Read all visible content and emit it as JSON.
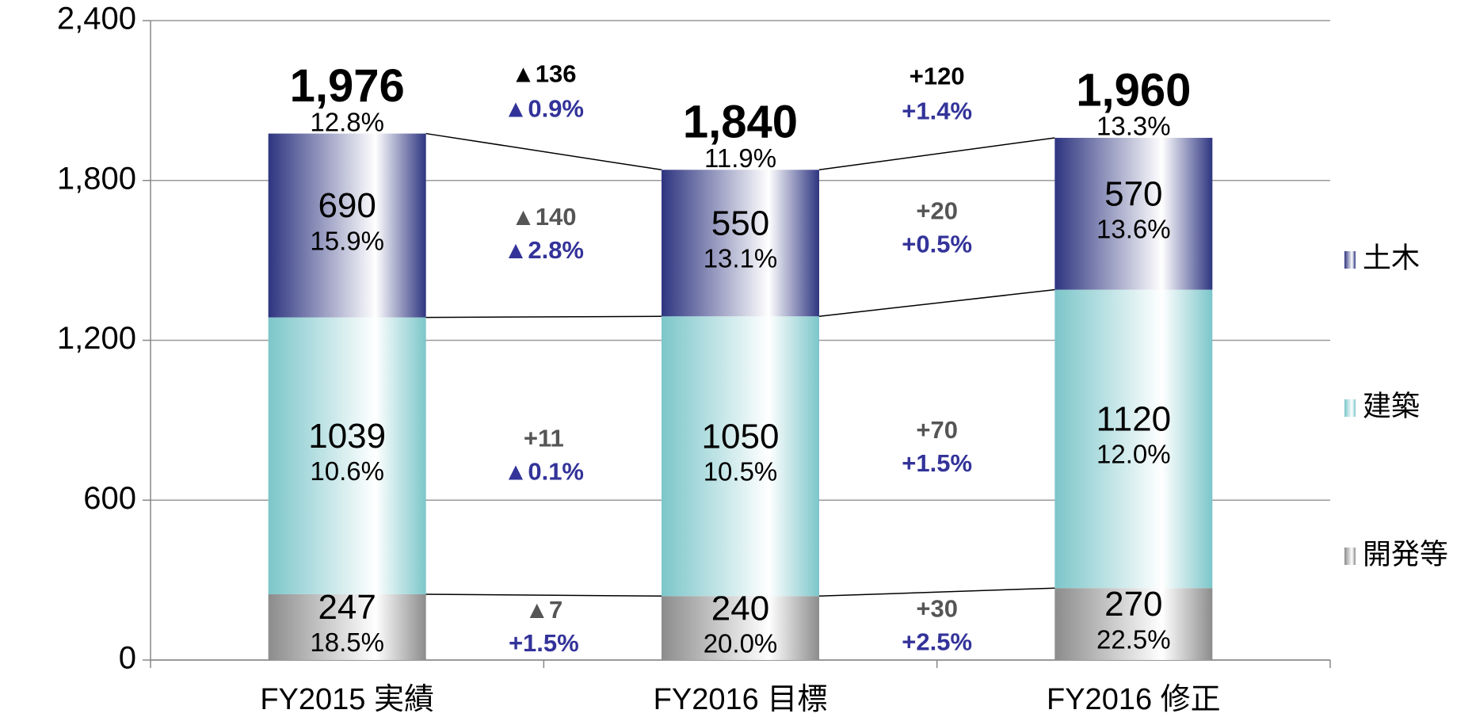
{
  "chart_data": {
    "type": "stacked_bar",
    "categories": [
      "FY2015 実績",
      "FY2016 目標",
      "FY2016 修正"
    ],
    "series": [
      {
        "name": "開発等",
        "color": "#8c8c8c",
        "values": [
          247,
          240,
          270
        ],
        "rates": [
          "18.5%",
          "20.0%",
          "22.5%"
        ],
        "changes": [
          [
            "▲7",
            "+1.5%"
          ],
          [
            "+30",
            "+2.5%"
          ]
        ]
      },
      {
        "name": "建築",
        "color": "#7cc6ca",
        "values": [
          1039,
          1050,
          1120
        ],
        "rates": [
          "10.6%",
          "10.5%",
          "12.0%"
        ],
        "changes": [
          [
            "+11",
            "▲0.1%"
          ],
          [
            "+70",
            "+1.5%"
          ]
        ]
      },
      {
        "name": "土木",
        "color": "#2e3580",
        "values": [
          690,
          550,
          570
        ],
        "rates": [
          "15.9%",
          "13.1%",
          "13.6%"
        ],
        "changes": [
          [
            "▲140",
            "▲2.8%"
          ],
          [
            "+20",
            "+0.5%"
          ]
        ]
      }
    ],
    "totals": [
      1976,
      1840,
      1960
    ],
    "total_labels": [
      "1,976",
      "1,840",
      "1,960"
    ],
    "total_rates": [
      "12.8%",
      "11.9%",
      "13.3%"
    ],
    "total_changes": [
      [
        "▲136",
        "▲0.9%"
      ],
      [
        "+120",
        "+1.4%"
      ]
    ],
    "ylim": [
      0,
      2400
    ],
    "yticks": [
      0,
      {
        "value": 600,
        "label": "600"
      },
      {
        "value": 1200,
        "label": "1,200"
      },
      {
        "value": 1800,
        "label": "1,800"
      },
      {
        "value": 2400,
        "label": "2,400"
      }
    ],
    "grid": true,
    "legend": "right"
  }
}
